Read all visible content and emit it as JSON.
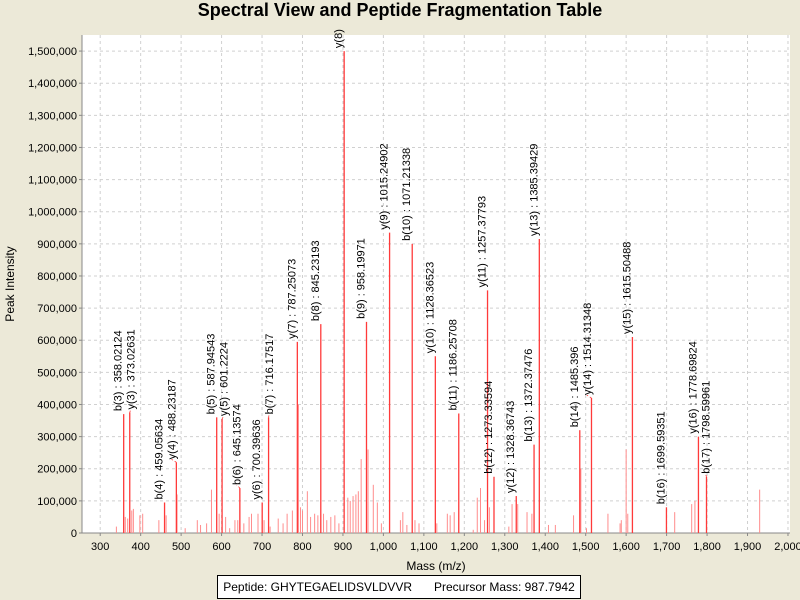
{
  "chart_data": {
    "type": "bar",
    "title": "Spectral View and Peptide Fragmentation Table",
    "xlabel": "Mass (m/z)",
    "ylabel": "Peak Intensity",
    "xlim": [
      255,
      2005
    ],
    "ylim": [
      0,
      1550000
    ],
    "xticks": [
      300,
      400,
      500,
      600,
      700,
      800,
      900,
      1000,
      1100,
      1200,
      1300,
      1400,
      1500,
      1600,
      1700,
      1800,
      1900,
      2000
    ],
    "xtick_labels": [
      "300",
      "400",
      "500",
      "600",
      "700",
      "800",
      "900",
      "1,000",
      "1,100",
      "1,200",
      "1,300",
      "1,400",
      "1,500",
      "1,600",
      "1,700",
      "1,800",
      "1,900",
      "2,000"
    ],
    "yticks": [
      0,
      100000,
      200000,
      300000,
      400000,
      500000,
      600000,
      700000,
      800000,
      900000,
      1000000,
      1100000,
      1200000,
      1300000,
      1400000,
      1500000
    ],
    "ytick_labels": [
      "0",
      "100,000",
      "200,000",
      "300,000",
      "400,000",
      "500,000",
      "600,000",
      "700,000",
      "800,000",
      "900,000",
      "1,000,000",
      "1,100,000",
      "1,200,000",
      "1,300,000",
      "1,400,000",
      "1,500,000"
    ],
    "grid": true,
    "colors": {
      "annotated": "#ff3a3a",
      "peak": "#ff8c8c"
    },
    "annotated_peaks": [
      {
        "mz": 358.02124,
        "intensity": 370000,
        "label": "b(3) : 358.02124"
      },
      {
        "mz": 373.02631,
        "intensity": 375000,
        "label": "y(3) : 373.02631"
      },
      {
        "mz": 459.05634,
        "intensity": 95000,
        "label": "b(4) : 459.05634"
      },
      {
        "mz": 488.23187,
        "intensity": 220000,
        "label": "y(4) : 488.23187"
      },
      {
        "mz": 587.94543,
        "intensity": 360000,
        "label": "b(5) : 587.94543"
      },
      {
        "mz": 601.2224,
        "intensity": 355000,
        "label": "y(5) : 601.2224"
      },
      {
        "mz": 645.13574,
        "intensity": 140000,
        "label": "b(6) : 645.13574"
      },
      {
        "mz": 700.39636,
        "intensity": 95000,
        "label": "y(6) : 700.39636"
      },
      {
        "mz": 716.17517,
        "intensity": 360000,
        "label": "b(7) : 716.17517"
      },
      {
        "mz": 787.25073,
        "intensity": 595000,
        "label": "y(7) : 787.25073"
      },
      {
        "mz": 845.23193,
        "intensity": 650000,
        "label": "b(8) : 845.23193"
      },
      {
        "mz": 903.0,
        "intensity": 1500000,
        "label": "y(8)"
      },
      {
        "mz": 958.19971,
        "intensity": 657000,
        "label": "b(9) : 958.19971"
      },
      {
        "mz": 1015.24902,
        "intensity": 935000,
        "label": "y(9) : 1015.24902"
      },
      {
        "mz": 1071.21338,
        "intensity": 900000,
        "label": "b(10) : 1071.21338"
      },
      {
        "mz": 1128.36523,
        "intensity": 550000,
        "label": "y(10) : 1128.36523"
      },
      {
        "mz": 1186.25708,
        "intensity": 372000,
        "label": "b(11) : 1186.25708"
      },
      {
        "mz": 1257.37793,
        "intensity": 755000,
        "label": "y(11) : 1257.37793"
      },
      {
        "mz": 1273.33594,
        "intensity": 175000,
        "label": "b(12) : 1273.33594"
      },
      {
        "mz": 1328.36743,
        "intensity": 115000,
        "label": "y(12) : 1328.36743"
      },
      {
        "mz": 1372.37476,
        "intensity": 275000,
        "label": "b(13) : 1372.37476"
      },
      {
        "mz": 1385.39429,
        "intensity": 915000,
        "label": "y(13) : 1385.39429"
      },
      {
        "mz": 1485.396,
        "intensity": 320000,
        "label": "b(14) : 1485.396"
      },
      {
        "mz": 1514.31348,
        "intensity": 420000,
        "label": "y(14) : 1514.31348"
      },
      {
        "mz": 1615.50488,
        "intensity": 610000,
        "label": "y(15) : 1615.50488"
      },
      {
        "mz": 1699.59351,
        "intensity": 80000,
        "label": "b(16) : 1699.59351"
      },
      {
        "mz": 1778.69824,
        "intensity": 300000,
        "label": "y(16) : 1778.69824"
      },
      {
        "mz": 1798.59961,
        "intensity": 175000,
        "label": "b(17) : 1798.59961"
      }
    ],
    "peaks": [
      [
        340,
        20000
      ],
      [
        362,
        50000
      ],
      [
        368,
        45000
      ],
      [
        378,
        70000
      ],
      [
        382,
        75000
      ],
      [
        398,
        55000
      ],
      [
        405,
        60000
      ],
      [
        445,
        40000
      ],
      [
        463,
        55000
      ],
      [
        490,
        120000
      ],
      [
        510,
        15000
      ],
      [
        540,
        40000
      ],
      [
        548,
        25000
      ],
      [
        563,
        30000
      ],
      [
        575,
        135000
      ],
      [
        594,
        60000
      ],
      [
        610,
        50000
      ],
      [
        620,
        15000
      ],
      [
        633,
        40000
      ],
      [
        640,
        40000
      ],
      [
        655,
        30000
      ],
      [
        668,
        50000
      ],
      [
        674,
        60000
      ],
      [
        690,
        60000
      ],
      [
        705,
        40000
      ],
      [
        720,
        20000
      ],
      [
        740,
        45000
      ],
      [
        752,
        30000
      ],
      [
        762,
        60000
      ],
      [
        775,
        70000
      ],
      [
        790,
        400000
      ],
      [
        795,
        80000
      ],
      [
        800,
        70000
      ],
      [
        812,
        130000
      ],
      [
        820,
        50000
      ],
      [
        830,
        60000
      ],
      [
        838,
        55000
      ],
      [
        852,
        60000
      ],
      [
        860,
        40000
      ],
      [
        870,
        50000
      ],
      [
        880,
        55000
      ],
      [
        890,
        30000
      ],
      [
        912,
        110000
      ],
      [
        918,
        100000
      ],
      [
        925,
        115000
      ],
      [
        932,
        120000
      ],
      [
        938,
        130000
      ],
      [
        945,
        230000
      ],
      [
        962,
        260000
      ],
      [
        975,
        150000
      ],
      [
        985,
        95000
      ],
      [
        995,
        30000
      ],
      [
        1042,
        40000
      ],
      [
        1048,
        65000
      ],
      [
        1058,
        25000
      ],
      [
        1078,
        40000
      ],
      [
        1088,
        30000
      ],
      [
        1132,
        30000
      ],
      [
        1158,
        60000
      ],
      [
        1165,
        55000
      ],
      [
        1175,
        65000
      ],
      [
        1222,
        10000
      ],
      [
        1232,
        110000
      ],
      [
        1240,
        140000
      ],
      [
        1250,
        40000
      ],
      [
        1262,
        80000
      ],
      [
        1310,
        20000
      ],
      [
        1318,
        90000
      ],
      [
        1332,
        90000
      ],
      [
        1355,
        65000
      ],
      [
        1367,
        60000
      ],
      [
        1408,
        25000
      ],
      [
        1425,
        25000
      ],
      [
        1470,
        55000
      ],
      [
        1488,
        200000
      ],
      [
        1502,
        15000
      ],
      [
        1555,
        60000
      ],
      [
        1585,
        30000
      ],
      [
        1588,
        40000
      ],
      [
        1600,
        260000
      ],
      [
        1604,
        60000
      ],
      [
        1720,
        65000
      ],
      [
        1762,
        90000
      ],
      [
        1770,
        100000
      ],
      [
        1930,
        135000
      ]
    ]
  },
  "legend": {
    "peptide": "Peptide: GHYTEGAELIDSVLDVVR",
    "precursor": "Precursor Mass: 987.7942"
  }
}
